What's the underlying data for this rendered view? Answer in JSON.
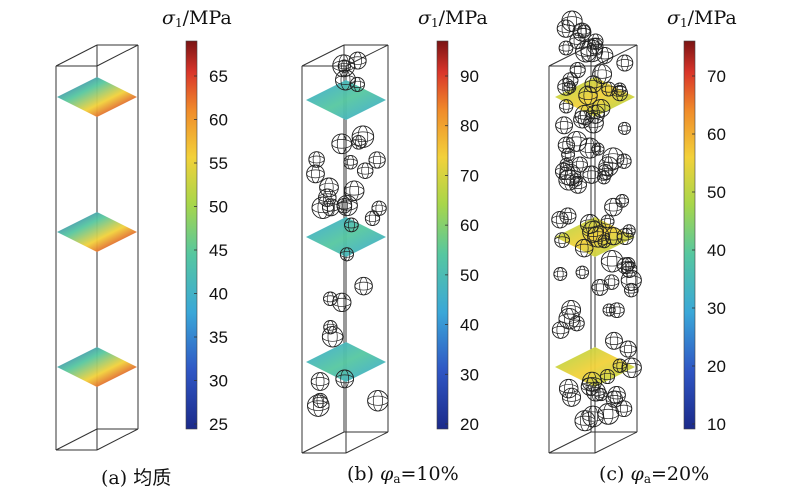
{
  "panels": [
    {
      "id": "a",
      "caption_prefix": "(a) 均质",
      "colorbar": {
        "title_symbol": "σ",
        "title_subscript": "1",
        "title_unit": "/MPa",
        "ticks": [
          "65",
          "60",
          "55",
          "50",
          "45",
          "40",
          "35",
          "30",
          "25"
        ]
      }
    },
    {
      "id": "b",
      "caption_prefix": "(b) ",
      "caption_symbol": "φ",
      "caption_subscript": "a",
      "caption_value": "=10%",
      "colorbar": {
        "title_symbol": "σ",
        "title_subscript": "1",
        "title_unit": "/MPa",
        "ticks": [
          "90",
          "80",
          "70",
          "60",
          "50",
          "40",
          "30",
          "20"
        ]
      }
    },
    {
      "id": "c",
      "caption_prefix": "(c) ",
      "caption_symbol": "φ",
      "caption_subscript": "a",
      "caption_value": "=20%",
      "colorbar": {
        "title_symbol": "σ",
        "title_subscript": "1",
        "title_unit": "/MPa",
        "ticks": [
          "70",
          "60",
          "50",
          "40",
          "30",
          "20",
          "10"
        ]
      }
    }
  ],
  "colors": {
    "jet": [
      "#1b2a8a",
      "#2f56c4",
      "#3aa7d8",
      "#56c7a0",
      "#a8d64a",
      "#f2d13a",
      "#f08c2a",
      "#d9352a",
      "#7a1414"
    ],
    "frame": "#333333",
    "aggregate": "#222222"
  }
}
